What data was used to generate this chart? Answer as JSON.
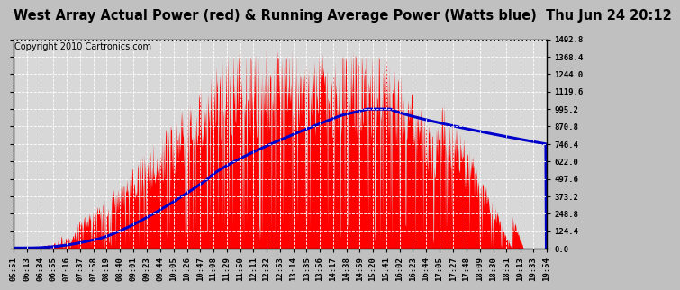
{
  "title": "West Array Actual Power (red) & Running Average Power (Watts blue)  Thu Jun 24 20:12",
  "copyright": "Copyright 2010 Cartronics.com",
  "ymax": 1492.8,
  "yticks": [
    0.0,
    124.4,
    248.8,
    373.2,
    497.6,
    622.0,
    746.4,
    870.8,
    995.2,
    1119.6,
    1244.0,
    1368.4,
    1492.8
  ],
  "xtick_labels": [
    "05:51",
    "06:13",
    "06:34",
    "06:55",
    "07:16",
    "07:37",
    "07:58",
    "08:19",
    "08:40",
    "09:01",
    "09:23",
    "09:44",
    "10:05",
    "10:26",
    "10:47",
    "11:08",
    "11:29",
    "11:50",
    "12:11",
    "12:32",
    "12:53",
    "13:14",
    "13:35",
    "13:56",
    "14:17",
    "14:38",
    "14:59",
    "15:20",
    "15:41",
    "16:02",
    "16:23",
    "16:44",
    "17:05",
    "17:27",
    "17:48",
    "18:09",
    "18:30",
    "18:51",
    "19:13",
    "19:33",
    "19:54"
  ],
  "bg_color": "#c0c0c0",
  "plot_bg_color": "#d8d8d8",
  "bar_color": "#ff0000",
  "line_color": "#0000cc",
  "grid_color": "#ffffff",
  "title_fontsize": 10.5,
  "copyright_fontsize": 7,
  "tick_fontsize": 6.5
}
